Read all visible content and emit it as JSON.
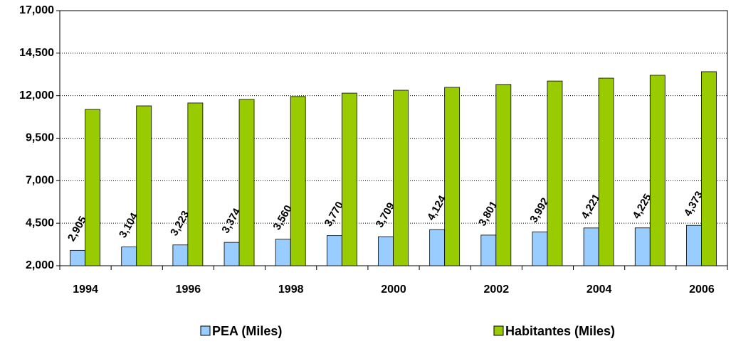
{
  "chart_data": {
    "type": "bar",
    "categories": [
      "1994",
      null,
      "1996",
      null,
      "1998",
      null,
      "2000",
      null,
      "2002",
      null,
      "2004",
      null,
      "2006"
    ],
    "series": [
      {
        "name": "PEA (Miles)",
        "color": "#99ccff",
        "values": [
          2905,
          3104,
          3223,
          3374,
          3560,
          3770,
          3709,
          4124,
          3801,
          3992,
          4221,
          4225,
          4373
        ],
        "value_labels": [
          "2,905",
          "3,104",
          "3,223",
          "3,374",
          "3,560",
          "3,770",
          "3,709",
          "4,124",
          "3,801",
          "3,992",
          "4,221",
          "4,225",
          "4,373"
        ]
      },
      {
        "name": "Habitantes (Miles)",
        "color": "#99cc00",
        "values": [
          11190,
          11400,
          11570,
          11780,
          11950,
          12150,
          12320,
          12490,
          12660,
          12860,
          13030,
          13200,
          13410
        ]
      }
    ],
    "ylim": [
      2000,
      17000
    ],
    "yticks": [
      {
        "value": 2000,
        "label": "2,000"
      },
      {
        "value": 4500,
        "label": "4,500"
      },
      {
        "value": 7000,
        "label": "7,000"
      },
      {
        "value": 9500,
        "label": "9,500"
      },
      {
        "value": 12000,
        "label": "12,000"
      },
      {
        "value": 14500,
        "label": "14,500"
      },
      {
        "value": 17000,
        "label": "17,000"
      }
    ],
    "grid": true
  }
}
